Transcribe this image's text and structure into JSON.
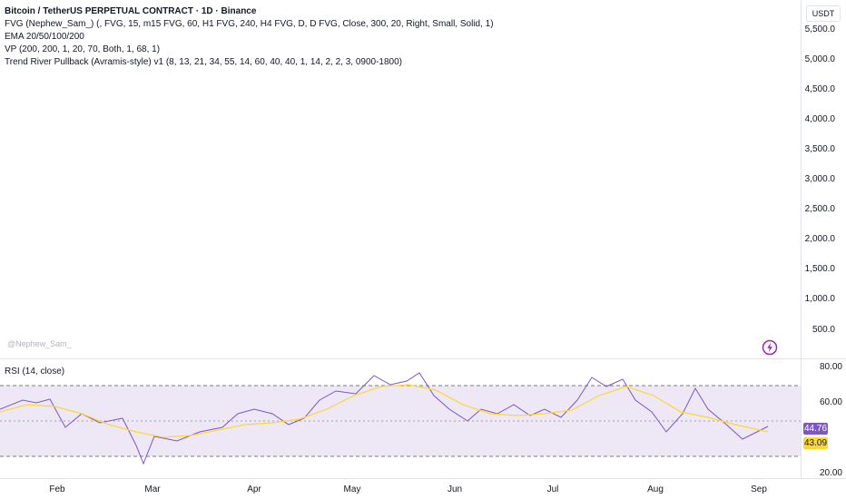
{
  "legend": {
    "title": "Bitcoin / TetherUS PERPETUAL CONTRACT · 1D · Binance",
    "indicators": [
      "FVG (Nephew_Sam_) (, FVG, 15, m15 FVG, 60, H1 FVG, 240, H4 FVG, D, D FVG, Close, 300, 20, Right, Small, Solid, 1)",
      "EMA 20/50/100/200",
      "VP (200, 200, 1, 20, 70, Both, 1, 68, 1)",
      "Trend River Pullback (Avramis-style) v1 (8, 13, 21, 34, 55, 14, 60, 40, 40, 1, 14, 2, 2, 3, 0900-1800)"
    ]
  },
  "currency": "USDT",
  "watermark": "@Nephew_Sam_",
  "price_scale": {
    "ticks": [
      "5,500.0",
      "5,000.0",
      "4,500.0",
      "4,000.0",
      "3,500.0",
      "3,000.0",
      "2,500.0",
      "2,000.0",
      "1,500.0",
      "1,000.0",
      "500.0"
    ]
  },
  "rsi_pane": {
    "title": "RSI (14, close)",
    "scale_ticks": [
      "80.00",
      "60.00",
      "20.00"
    ],
    "rsi_value": "44.76",
    "ma_value": "43.09",
    "colors": {
      "rsi": "#7e57c2",
      "ma": "#fdd835",
      "band": "#ede7f6",
      "band_border": "#787b86"
    }
  },
  "time_axis": {
    "months": [
      "Feb",
      "Mar",
      "Apr",
      "May",
      "Jun",
      "Jul",
      "Aug",
      "Sep"
    ]
  },
  "icons": {
    "bolt": "lightning-bolt-icon"
  }
}
